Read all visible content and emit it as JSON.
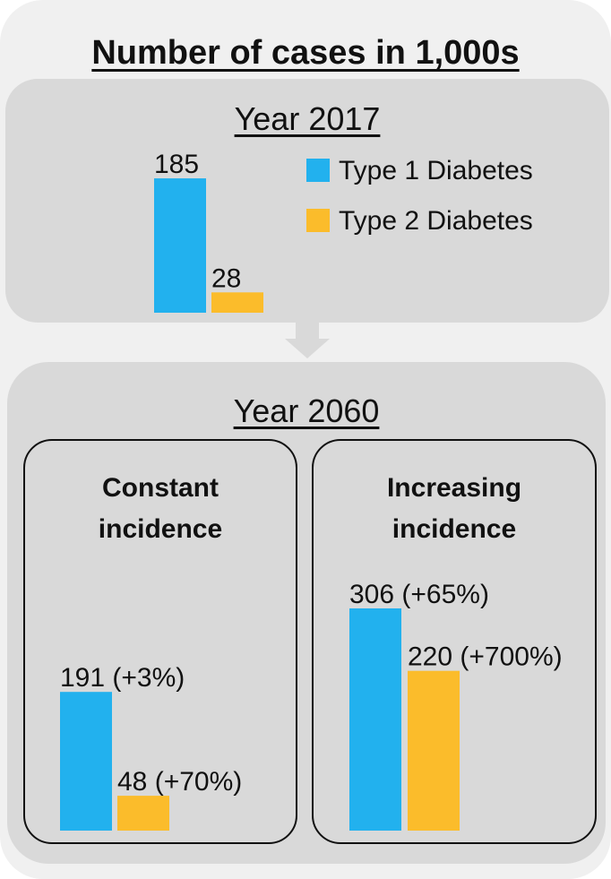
{
  "title": "Number of cases in 1,000s",
  "colors": {
    "type1": "#22b1ee",
    "type2": "#fbbc2b",
    "panel": "#d9d9d9",
    "outer": "#f0f0f0"
  },
  "chart_data": {
    "type": "bar",
    "series": [
      {
        "name": "Type 1 Diabetes",
        "color": "#22b1ee"
      },
      {
        "name": "Type 2 Diabetes",
        "color": "#fbbc2b"
      }
    ],
    "groups": [
      {
        "year": "Year 2017",
        "scenario": "",
        "values": [
          185,
          28
        ],
        "labels": [
          "185",
          "28"
        ]
      },
      {
        "year": "Year 2060",
        "scenario": "Constant incidence",
        "scenario_lines": [
          "Constant",
          "incidence"
        ],
        "values": [
          191,
          48
        ],
        "labels": [
          "191 (+3%)",
          "48 (+70%)"
        ]
      },
      {
        "year": "Year 2060",
        "scenario": "Increasing incidence",
        "scenario_lines": [
          "Increasing",
          "incidence"
        ],
        "values": [
          306,
          220
        ],
        "labels": [
          "306 (+65%)",
          "220 (+700%)"
        ]
      }
    ],
    "xlabel": "",
    "ylabel": ""
  },
  "panels": {
    "p2017": {
      "year": "Year 2017"
    },
    "p2060": {
      "year": "Year 2060"
    },
    "constant": {
      "line1": "Constant",
      "line2": "incidence"
    },
    "increasing": {
      "line1": "Increasing",
      "line2": "incidence"
    }
  },
  "legend": [
    {
      "label": "Type 1 Diabetes"
    },
    {
      "label": "Type 2 Diabetes"
    }
  ]
}
